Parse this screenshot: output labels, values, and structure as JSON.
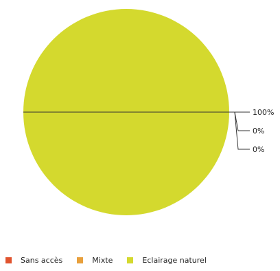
{
  "chart_data": {
    "type": "pie",
    "categories": [
      "Sans accès",
      "Mixte",
      "Eclairage naturel"
    ],
    "values": [
      0,
      0,
      100
    ],
    "value_labels": [
      "0%",
      "0%",
      "100%"
    ],
    "colors": [
      "#e0532e",
      "#e8a03c",
      "#d4d92e"
    ],
    "legend_position": "bottom"
  }
}
